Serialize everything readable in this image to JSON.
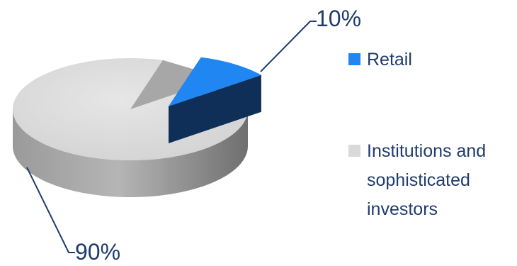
{
  "chart_data": {
    "type": "pie",
    "categories": [
      "Retail",
      "Institutions and sophisticated investors"
    ],
    "values": [
      10,
      90
    ],
    "data_labels": [
      "10%",
      "90%"
    ],
    "legend": {
      "placement": "right",
      "entries": [
        {
          "label_lines": [
            "Retail"
          ],
          "color": "#1f86f2"
        },
        {
          "label_lines": [
            "Institutions and",
            "sophisticated",
            "investors"
          ],
          "color": "#d9d9d9"
        }
      ]
    },
    "colors": {
      "Retail": "#1f86f2",
      "Retail_side": "#123c6e",
      "Institutions": "#d9d9d9",
      "Institutions_side": "#8f8f8f",
      "label": "#1f3c6d"
    },
    "style": "3d"
  }
}
